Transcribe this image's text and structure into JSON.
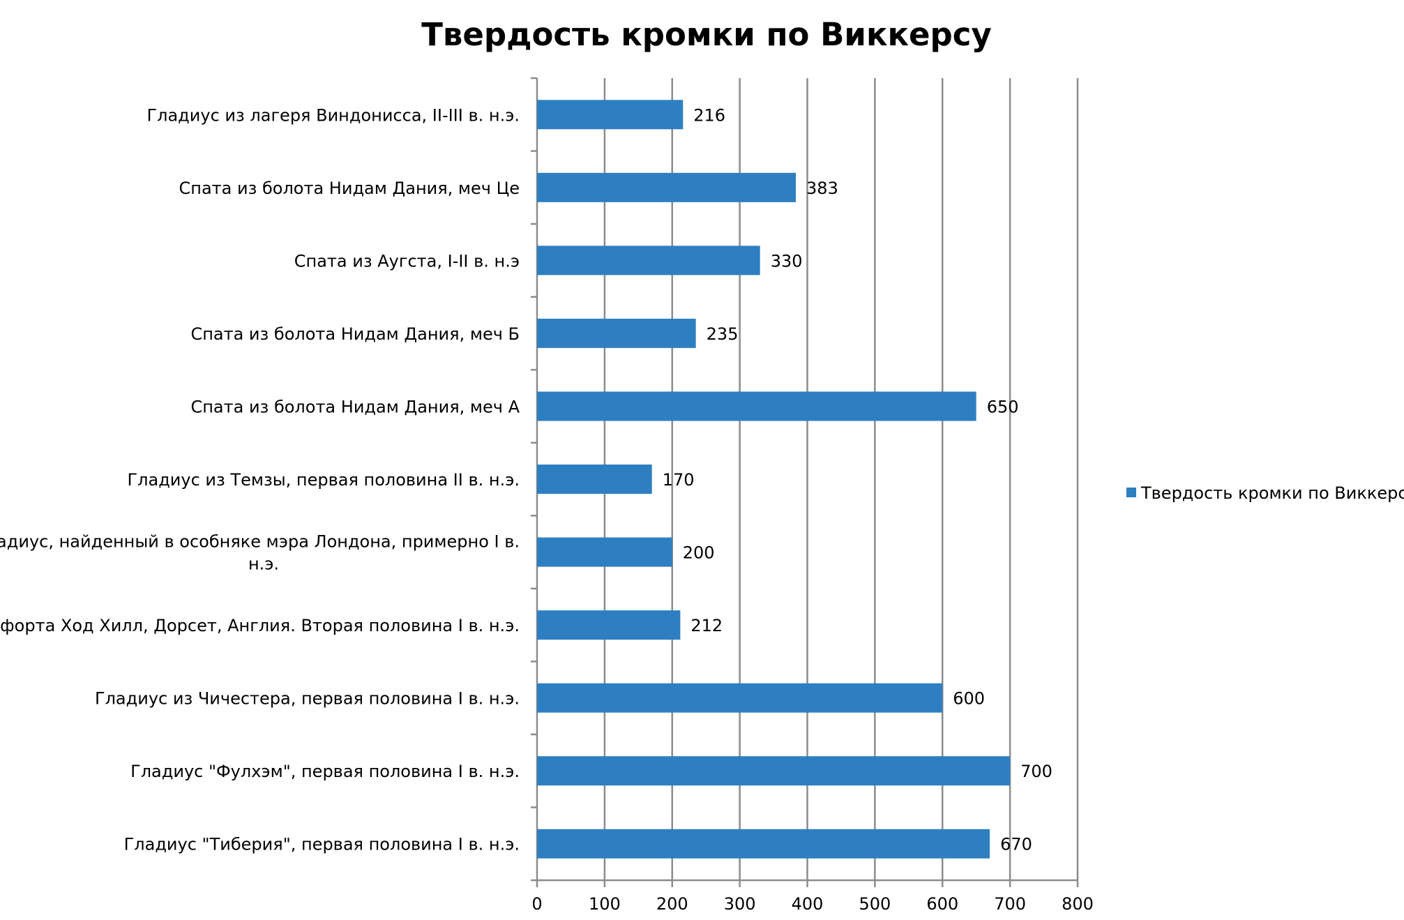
{
  "chart_data": {
    "type": "bar",
    "orientation": "horizontal",
    "title": "Твердость кромки по Виккерсу",
    "xlabel": "",
    "ylabel": "",
    "xlim": [
      0,
      800
    ],
    "ticks": [
      0,
      100,
      200,
      300,
      400,
      500,
      600,
      700,
      800
    ],
    "grid": true,
    "legend_position": "right",
    "bar_color": "#2e7fc2",
    "categories": [
      [
        "Гладиус из лагеря Виндонисса, II-III в. н.э."
      ],
      [
        "Спата из болота Нидам Дания, меч Це"
      ],
      [
        "Спата из Аугста, I-II в. н.э"
      ],
      [
        "Спата из болота Нидам Дания, меч Б"
      ],
      [
        "Спата из болота Нидам Дания, меч А"
      ],
      [
        "Гладиус из Темзы, первая половина II в. н.э."
      ],
      [
        "Гладиус, найденный в особняке мэра Лондона, примерно I в.",
        "н.э."
      ],
      [
        "Меч форта Ход Хилл, Дорсет, Англия. Вторая половина I в. н.э."
      ],
      [
        "Гладиус из Чичестера, первая половина I в. н.э."
      ],
      [
        "Гладиус \"Фулхэм\", первая половина I в. н.э."
      ],
      [
        "Гладиус \"Тиберия\", первая половина I в. н.э."
      ]
    ],
    "series": [
      {
        "name": "Твердость кромки по Виккерсу",
        "values": [
          216,
          383,
          330,
          235,
          650,
          170,
          200,
          212,
          600,
          700,
          670
        ]
      }
    ]
  }
}
